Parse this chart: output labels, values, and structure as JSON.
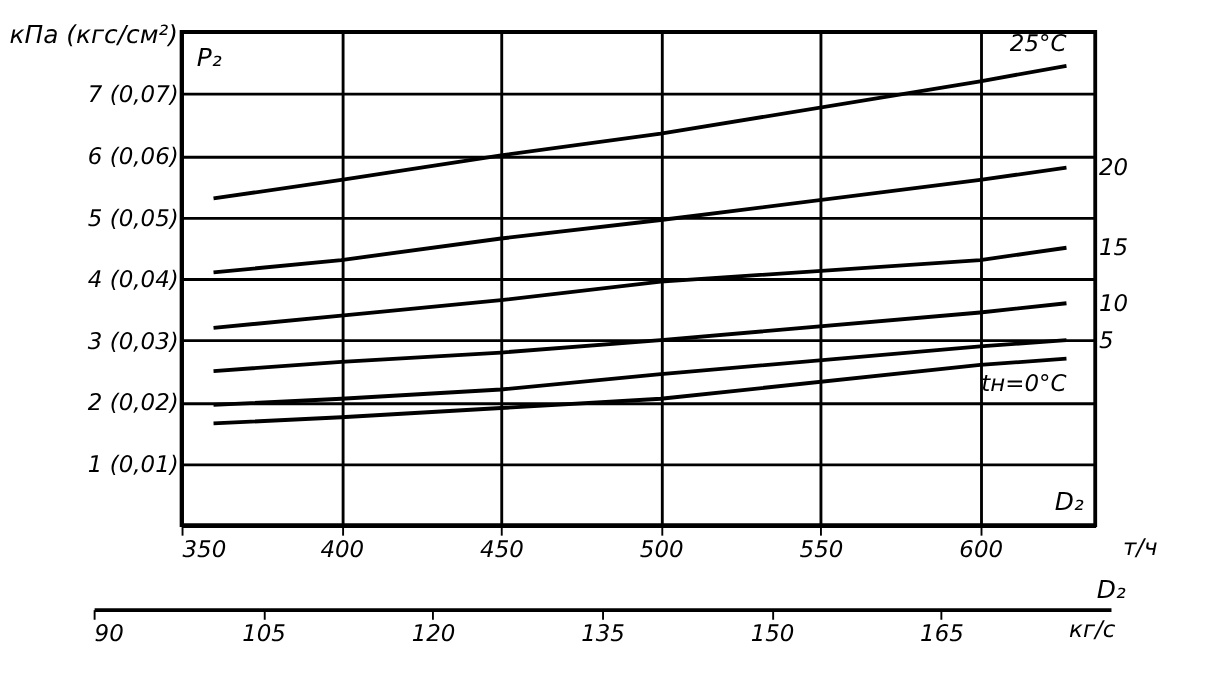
{
  "chart_data": {
    "type": "line",
    "ylabel": "кПа (кгс/см²)",
    "xlabel": "т/ч",
    "x2label": "кг/с",
    "annotations": [
      "P₂",
      "D₂",
      "D₂"
    ],
    "x": [
      360,
      400,
      450,
      500,
      600,
      627
    ],
    "series": [
      {
        "name": "25°C",
        "color": "#000000",
        "values": [
          5.3,
          5.6,
          6.0,
          6.35,
          7.2,
          7.45
        ]
      },
      {
        "name": "20",
        "color": "#000000",
        "values": [
          4.1,
          4.3,
          4.65,
          4.95,
          5.6,
          5.8
        ]
      },
      {
        "name": "15",
        "color": "#000000",
        "values": [
          3.2,
          3.4,
          3.65,
          3.95,
          4.3,
          4.5
        ]
      },
      {
        "name": "10",
        "color": "#000000",
        "values": [
          2.5,
          2.65,
          2.8,
          3.0,
          3.45,
          3.6
        ]
      },
      {
        "name": "5",
        "color": "#000000",
        "values": [
          1.95,
          2.05,
          2.2,
          2.45,
          2.9,
          3.0
        ]
      },
      {
        "name": "tн=0°C",
        "color": "#000000",
        "values": [
          1.65,
          1.75,
          1.9,
          2.05,
          2.6,
          2.7
        ]
      }
    ],
    "xlim": [
      350,
      636
    ],
    "xticks": [
      350,
      400,
      450,
      500,
      550,
      600
    ],
    "ylim": [
      0,
      8
    ],
    "yticks": [
      1,
      2,
      3,
      4,
      5,
      6,
      7
    ],
    "y2lim": [
      0,
      0.08
    ],
    "y2ticks": [
      {
        "value": 0.01,
        "label": "(0,01)"
      },
      {
        "value": 0.02,
        "label": "(0,02)"
      },
      {
        "value": 0.03,
        "label": "(0,03)"
      },
      {
        "value": 0.04,
        "label": "(0,04)"
      },
      {
        "value": 0.05,
        "label": "(0,05)"
      },
      {
        "value": 0.06,
        "label": "(0,06)"
      },
      {
        "value": 0.07,
        "label": "(0,07)"
      }
    ],
    "x2lim": [
      90,
      180
    ],
    "x2ticks": [
      90,
      105,
      120,
      135,
      150,
      165
    ],
    "grid": true,
    "legend": false,
    "marker": "none",
    "line_style": "solid"
  }
}
